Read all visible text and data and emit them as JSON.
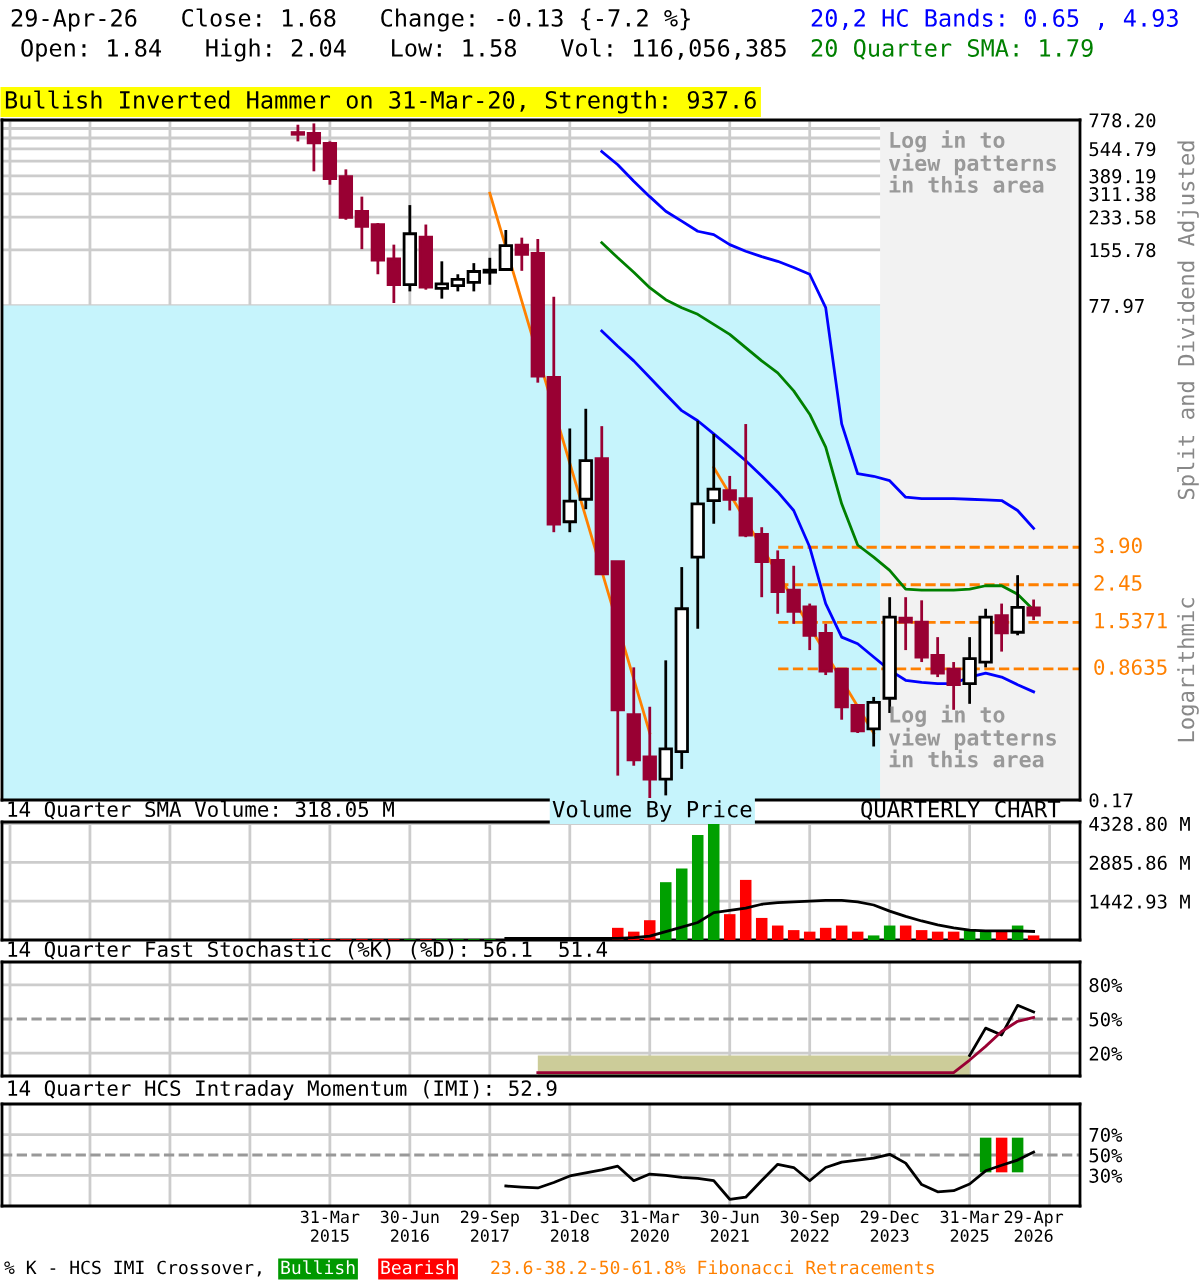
{
  "chart_data": [
    {
      "type": "candlestick",
      "title": "29-Apr-26   Close: 1.68   Change: -0.13 {-7.2 %}",
      "subtitle": "Open: 1.84   High: 2.04   Low: 1.58   Vol: 116,056,385",
      "ylabel": "Split and Dividend Adjusted",
      "annotations": [
        "Bullish Inverted Hammer on 31-Mar-20, Strength: 937.6",
        "Log in to\nview patterns\nin this area",
        "Log in to\nview patterns\nin this area",
        "Logarithmic"
      ],
      "categories": [
        null,
        null,
        "31-Mar\n2015",
        null,
        null,
        null,
        null,
        "30-Jun\n2016",
        null,
        null,
        null,
        null,
        "29-Sep\n2017",
        null,
        null,
        null,
        null,
        "31-Dec\n2018",
        null,
        null,
        null,
        null,
        "31-Mar\n2020",
        null,
        null,
        null,
        null,
        "30-Jun\n2021",
        null,
        null,
        null,
        null,
        "30-Sep\n2022",
        null,
        null,
        null,
        null,
        "29-Dec\n2023",
        null,
        null,
        null,
        null,
        "31-Mar\n2025",
        null,
        null,
        null,
        "29-Apr\n2026"
      ],
      "ohlc": [
        [
          666,
          734,
          597,
          652
        ],
        [
          659,
          746,
          412,
          587
        ],
        [
          582,
          597,
          349,
          376
        ],
        [
          386,
          422,
          226,
          233
        ],
        [
          251,
          301,
          157,
          208
        ],
        [
          213,
          217,
          115,
          137
        ],
        [
          139,
          166,
          80.5,
          101
        ],
        [
          101,
          271,
          93,
          190
        ],
        [
          182,
          213,
          95,
          98
        ],
        [
          96.5,
          135,
          85,
          102
        ],
        [
          100,
          115,
          93,
          108
        ],
        [
          104,
          132,
          93,
          119
        ],
        [
          118,
          141,
          101,
          121
        ],
        [
          122,
          199,
          120,
          164
        ],
        [
          165,
          181,
          120,
          147
        ],
        [
          149,
          178,
          30,
          32.5
        ],
        [
          32,
          87,
          4.7,
          5.2
        ],
        [
          5.35,
          17,
          4.7,
          6.9
        ],
        [
          7.07,
          21.7,
          6.25,
          11.4
        ],
        [
          11.7,
          17.5,
          2.8,
          2.8
        ],
        [
          3.26,
          3.26,
          0.23,
          0.52
        ],
        [
          0.49,
          0.88,
          0.26,
          0.28
        ],
        [
          0.29,
          0.54,
          0.17,
          0.22
        ],
        [
          0.22,
          0.96,
          0.18,
          0.32
        ],
        [
          0.31,
          3.05,
          0.25,
          1.82
        ],
        [
          3.45,
          18.7,
          1.42,
          6.68
        ],
        [
          6.96,
          15.9,
          5.22,
          8.01
        ],
        [
          7.87,
          9.44,
          6.15,
          7.07
        ],
        [
          7.13,
          17.96,
          4.42,
          4.53
        ],
        [
          4.57,
          5.0,
          2.1,
          3.26
        ],
        [
          3.31,
          3.75,
          1.71,
          2.25
        ],
        [
          2.29,
          3.1,
          1.51,
          1.76
        ],
        [
          1.86,
          1.94,
          1.09,
          1.31
        ],
        [
          1.34,
          1.51,
          0.8,
          0.84
        ],
        [
          0.86,
          0.86,
          0.46,
          0.54
        ],
        [
          0.55,
          0.55,
          0.39,
          0.4
        ],
        [
          0.41,
          0.61,
          0.33,
          0.57
        ],
        [
          0.6,
          2.1,
          0.5,
          1.64
        ],
        [
          1.62,
          2.1,
          1.09,
          1.54
        ],
        [
          1.54,
          2.02,
          0.94,
          1.0
        ],
        [
          1.02,
          1.28,
          0.78,
          0.82
        ],
        [
          0.86,
          0.94,
          0.52,
          0.71
        ],
        [
          0.72,
          1.28,
          0.56,
          0.98
        ],
        [
          0.94,
          1.82,
          0.88,
          1.64
        ],
        [
          1.67,
          1.94,
          1.07,
          1.35
        ],
        [
          1.36,
          2.76,
          1.31,
          1.85
        ],
        [
          1.84,
          2.04,
          1.58,
          1.68
        ]
      ],
      "series": [
        {
          "name": "20,2 HC Bands: 0.65 , 4.93",
          "type": "line",
          "color": "#0000ff",
          "values": [
            null,
            null,
            null,
            null,
            null,
            null,
            null,
            null,
            null,
            null,
            null,
            null,
            null,
            null,
            null,
            null,
            null,
            null,
            null,
            527,
            447,
            364,
            301,
            251,
            222,
            196,
            188,
            166,
            153,
            143,
            135,
            125,
            115,
            76,
            18,
            9.7,
            9.4,
            8.9,
            7.25,
            7.13,
            7.13,
            7.13,
            7.07,
            7.02,
            6.96,
            6.15,
            4.93
          ]
        },
        {
          "type": "line",
          "color": "#0000ff",
          "values": [
            null,
            null,
            null,
            null,
            null,
            null,
            null,
            null,
            null,
            null,
            null,
            null,
            null,
            null,
            null,
            null,
            null,
            null,
            null,
            57,
            47.1,
            39.3,
            32,
            26,
            21.2,
            18.7,
            15.9,
            13.5,
            11.4,
            9.44,
            7.74,
            6.15,
            3.91,
            1.94,
            1.28,
            1.18,
            1.0,
            0.85,
            0.75,
            0.73,
            0.72,
            0.72,
            0.78,
            0.82,
            0.78,
            0.71,
            0.65
          ]
        },
        {
          "name": "20 Quarter SMA: 1.79",
          "type": "line",
          "color": "#008000",
          "values": [
            null,
            null,
            null,
            null,
            null,
            null,
            null,
            null,
            null,
            null,
            null,
            null,
            null,
            null,
            null,
            null,
            null,
            null,
            null,
            170,
            141,
            118,
            97.3,
            83.9,
            76,
            70,
            61.8,
            54.6,
            46.3,
            39.3,
            33.9,
            27.1,
            20.3,
            13.5,
            6.68,
            4.01,
            3.45,
            2.93,
            2.32,
            2.29,
            2.29,
            2.29,
            2.32,
            2.42,
            2.42,
            2.18,
            1.79
          ]
        },
        {
          "type": "line",
          "color": "#ff8000",
          "values": [
            null,
            null,
            null,
            null,
            null,
            null,
            null,
            null,
            null,
            null,
            null,
            null,
            314,
            null,
            null,
            null,
            null,
            null,
            null,
            null,
            null,
            null,
            0.39,
            null,
            null,
            null,
            null,
            null,
            null,
            null,
            null,
            null,
            null,
            null,
            null,
            null,
            null,
            null,
            null,
            null,
            null,
            null,
            null,
            null,
            null,
            null,
            null
          ]
        },
        {
          "type": "line",
          "color": "#ff8000",
          "values": [
            null,
            null,
            null,
            null,
            null,
            null,
            null,
            null,
            null,
            null,
            null,
            null,
            null,
            null,
            null,
            null,
            null,
            null,
            null,
            null,
            null,
            null,
            null,
            null,
            null,
            null,
            10.5,
            null,
            null,
            null,
            null,
            null,
            null,
            null,
            null,
            null,
            0.39,
            null,
            null,
            null,
            null,
            null,
            null,
            null,
            null,
            null,
            null
          ]
        }
      ],
      "log": true,
      "ylim": [
        0.17,
        778.2
      ],
      "yticks": [
        {
          "value": 0.17,
          "label": "0.17"
        },
        {
          "value": 77.97,
          "label": "77.97"
        },
        {
          "value": 155.78,
          "label": "155.78"
        },
        {
          "value": 233.58,
          "label": "233.58"
        },
        {
          "value": 311.38,
          "label": "311.38"
        },
        {
          "value": 389.19,
          "label": "389.19"
        },
        {
          "value": 466.99,
          "label": null
        },
        {
          "value": 544.79,
          "label": "544.79"
        },
        {
          "value": 622.59,
          "label": null
        },
        {
          "value": 700.4,
          "label": null
        },
        {
          "value": 778.2,
          "label": "778.20"
        }
      ],
      "ref_lines": [
        {
          "axis": "y",
          "value": 3.9,
          "label": "3.90",
          "color": "#ff8000",
          "line_style": "dashed"
        },
        {
          "axis": "y",
          "value": 2.45,
          "label": "2.45",
          "color": "#ff8000",
          "line_style": "dashed"
        },
        {
          "axis": "y",
          "value": 1.5371,
          "label": "1.5371",
          "color": "#ff8000",
          "line_style": "dashed"
        },
        {
          "axis": "y",
          "value": 0.8635,
          "label": "0.8635",
          "color": "#ff8000",
          "line_style": "dashed"
        }
      ],
      "bands": [
        {
          "axis": "y",
          "from": 0.17,
          "to": 77.97,
          "color": "#c6f4fc"
        },
        {
          "axis": "x",
          "from": "29-Dec\n2023",
          "to": "29-Apr\n2026",
          "color": "#f2f2f2"
        }
      ],
      "grid": true,
      "tick_labels": "y",
      "legend": "top right"
    },
    {
      "type": "bar",
      "title": "14 Quarter SMA Volume: 318.05 M",
      "annotations": [
        "Volume By Price",
        "QUARTERLY CHART"
      ],
      "categories": [
        null,
        null,
        "31-Mar\n2015",
        null,
        null,
        null,
        null,
        "30-Jun\n2016",
        null,
        null,
        null,
        null,
        "29-Sep\n2017",
        null,
        null,
        null,
        null,
        "31-Dec\n2018",
        null,
        null,
        null,
        null,
        "31-Mar\n2020",
        null,
        null,
        null,
        null,
        "30-Jun\n2021",
        null,
        null,
        null,
        null,
        "30-Sep\n2022",
        null,
        null,
        null,
        null,
        "29-Dec\n2023",
        null,
        null,
        null,
        null,
        "31-Mar\n2025",
        null,
        null,
        null,
        "29-Apr\n2026"
      ],
      "series": [
        {
          "type": "bar",
          "colors": [
            "#ff0000",
            "#ff0000",
            "#ff0000",
            "#ff0000",
            "#ff0000",
            "#ff0000",
            "#ff0000",
            "#00a000",
            "#ff0000",
            "#00a000",
            "#00a000",
            "#00a000",
            "#00a000",
            "#00a000",
            "#ff0000",
            "#ff0000",
            "#ff0000",
            "#00a000",
            "#00a000",
            "#ff0000",
            "#ff0000",
            "#ff0000",
            "#ff0000",
            "#00a000",
            "#00a000",
            "#00a000",
            "#00a000",
            "#ff0000",
            "#ff0000",
            "#ff0000",
            "#ff0000",
            "#ff0000",
            "#ff0000",
            "#ff0000",
            "#ff0000",
            "#ff0000",
            "#00a000",
            "#00a000",
            "#ff0000",
            "#ff0000",
            "#ff0000",
            "#ff0000",
            "#00a000",
            "#00a000",
            "#ff0000",
            "#00a000",
            "#ff0000"
          ],
          "values": [
            30,
            30,
            30,
            30,
            30,
            30,
            30,
            30,
            30,
            30,
            30,
            30,
            30,
            null,
            null,
            null,
            null,
            null,
            null,
            null,
            453,
            311,
            736,
            2151,
            2660,
            3905,
            4380,
            962,
            2236,
            821,
            538,
            368,
            311,
            453,
            538,
            311,
            170,
            538,
            538,
            368,
            311,
            311,
            368,
            311,
            311,
            538,
            170
          ]
        },
        {
          "type": "line",
          "color": "#000000",
          "values": [
            null,
            null,
            null,
            null,
            null,
            null,
            null,
            null,
            null,
            null,
            null,
            null,
            null,
            57,
            57,
            57,
            57,
            57,
            57,
            57,
            57,
            85,
            142,
            311,
            481,
            651,
            1019,
            1104,
            1189,
            1330,
            1387,
            1415,
            1443,
            1472,
            1472,
            1415,
            1302,
            1075,
            877,
            708,
            566,
            453,
            368,
            340,
            340,
            340,
            318.05
          ]
        }
      ],
      "ylim": [
        0,
        4390
      ],
      "yticks": [
        {
          "value": 1442.93,
          "label": "1442.93 M"
        },
        {
          "value": 2885.86,
          "label": "2885.86 M"
        },
        {
          "value": 4328.8,
          "label": "4328.80 M"
        }
      ],
      "grid": true,
      "tick_labels": "y"
    },
    {
      "type": "line",
      "title": "14 Quarter Fast Stochastic (%K) (%D): 56.1  51.4",
      "categories": [
        null,
        null,
        "31-Mar\n2015",
        null,
        null,
        null,
        null,
        "30-Jun\n2016",
        null,
        null,
        null,
        null,
        "29-Sep\n2017",
        null,
        null,
        null,
        null,
        "31-Dec\n2018",
        null,
        null,
        null,
        null,
        "31-Mar\n2020",
        null,
        null,
        null,
        null,
        "30-Jun\n2021",
        null,
        null,
        null,
        null,
        "30-Sep\n2022",
        null,
        null,
        null,
        null,
        "29-Dec\n2023",
        null,
        null,
        null,
        null,
        "31-Mar\n2025",
        null,
        null,
        null,
        "29-Apr\n2026"
      ],
      "series": [
        {
          "type": "area",
          "color": "#cccc99",
          "values": [
            null,
            null,
            null,
            null,
            null,
            null,
            null,
            null,
            null,
            null,
            null,
            null,
            null,
            null,
            null,
            18,
            18,
            18,
            18,
            18,
            18,
            18,
            18,
            18,
            18,
            18,
            18,
            18,
            18,
            18,
            18,
            18,
            18,
            18,
            18,
            18,
            18,
            18,
            18,
            18,
            18,
            18,
            18,
            null,
            null,
            null,
            null
          ]
        },
        {
          "type": "line",
          "color": "#000000",
          "values": [
            null,
            null,
            null,
            null,
            null,
            null,
            null,
            null,
            null,
            null,
            null,
            null,
            null,
            null,
            null,
            null,
            null,
            null,
            null,
            null,
            null,
            null,
            null,
            null,
            null,
            null,
            null,
            null,
            null,
            null,
            null,
            null,
            null,
            null,
            null,
            null,
            null,
            null,
            null,
            null,
            null,
            null,
            18,
            42,
            36,
            62,
            56.1
          ]
        },
        {
          "type": "line",
          "color": "#990033",
          "values": [
            null,
            null,
            null,
            null,
            null,
            null,
            null,
            null,
            null,
            null,
            null,
            null,
            null,
            null,
            null,
            3,
            3,
            3,
            3,
            3,
            3,
            3,
            3,
            3,
            3,
            3,
            3,
            3,
            3,
            3,
            3,
            3,
            3,
            3,
            3,
            3,
            3,
            3,
            3,
            3,
            3,
            3,
            14,
            26,
            39,
            48,
            51.4
          ]
        }
      ],
      "ylim": [
        0,
        100
      ],
      "yticks": [
        {
          "value": 20,
          "label": "20%"
        },
        {
          "value": 50,
          "label": "50%"
        },
        {
          "value": 80,
          "label": "80%"
        }
      ],
      "ref_lines": [
        {
          "axis": "y",
          "value": 50,
          "color": "#999999",
          "line_style": "dashed"
        }
      ],
      "grid": true,
      "tick_labels": "y"
    },
    {
      "type": "line",
      "title": "14 Quarter HCS Intraday Momentum (IMI): 52.9",
      "annotations": [
        "% K - HCS IMI Crossover,",
        "23.6-38.2-50-61.8% Fibonacci Retracements"
      ],
      "categories": [
        null,
        null,
        "31-Mar\n2015",
        null,
        null,
        null,
        null,
        "30-Jun\n2016",
        null,
        null,
        null,
        null,
        "29-Sep\n2017",
        null,
        null,
        null,
        null,
        "31-Dec\n2018",
        null,
        null,
        null,
        null,
        "31-Mar\n2020",
        null,
        null,
        null,
        null,
        "30-Jun\n2021",
        null,
        null,
        null,
        null,
        "30-Sep\n2022",
        null,
        null,
        null,
        null,
        "29-Dec\n2023",
        null,
        null,
        null,
        null,
        "31-Mar\n2025",
        null,
        null,
        null,
        "29-Apr\n2026"
      ],
      "series": [
        {
          "type": "line",
          "color": "#000000",
          "values": [
            null,
            null,
            null,
            null,
            null,
            null,
            null,
            null,
            null,
            null,
            null,
            null,
            null,
            19.6,
            18.5,
            17.7,
            23,
            29.5,
            32.5,
            35.5,
            39,
            24.8,
            31.3,
            30,
            28,
            27,
            24.8,
            6.6,
            8.6,
            25,
            40.9,
            37.7,
            24.8,
            37.7,
            43,
            45,
            47,
            50.7,
            42,
            21,
            13.9,
            15,
            21.6,
            34.5,
            40,
            45,
            52.9
          ]
        },
        {
          "name": "Bullish",
          "type": "bar",
          "color": "#009900",
          "values": [
            null,
            null,
            null,
            null,
            null,
            null,
            null,
            null,
            null,
            null,
            null,
            null,
            null,
            null,
            null,
            null,
            null,
            null,
            null,
            null,
            null,
            null,
            null,
            null,
            null,
            null,
            null,
            null,
            null,
            null,
            null,
            null,
            null,
            null,
            null,
            null,
            null,
            null,
            null,
            null,
            null,
            null,
            null,
            34,
            null,
            34,
            null
          ],
          "base": [
            null,
            null,
            null,
            null,
            null,
            null,
            null,
            null,
            null,
            null,
            null,
            null,
            null,
            null,
            null,
            null,
            null,
            null,
            null,
            null,
            null,
            null,
            null,
            null,
            null,
            null,
            null,
            null,
            null,
            null,
            null,
            null,
            null,
            null,
            null,
            null,
            null,
            null,
            null,
            null,
            null,
            null,
            null,
            33,
            null,
            33,
            null
          ]
        },
        {
          "name": "Bearish",
          "type": "bar",
          "color": "#ff0000",
          "values": [
            null,
            null,
            null,
            null,
            null,
            null,
            null,
            null,
            null,
            null,
            null,
            null,
            null,
            null,
            null,
            null,
            null,
            null,
            null,
            null,
            null,
            null,
            null,
            null,
            null,
            null,
            null,
            null,
            null,
            null,
            null,
            null,
            null,
            null,
            null,
            null,
            null,
            null,
            null,
            null,
            null,
            null,
            null,
            null,
            34,
            null,
            null
          ],
          "base": [
            null,
            null,
            null,
            null,
            null,
            null,
            null,
            null,
            null,
            null,
            null,
            null,
            null,
            null,
            null,
            null,
            null,
            null,
            null,
            null,
            null,
            null,
            null,
            null,
            null,
            null,
            null,
            null,
            null,
            null,
            null,
            null,
            null,
            null,
            null,
            null,
            null,
            null,
            null,
            null,
            null,
            null,
            null,
            null,
            33,
            null,
            null
          ]
        }
      ],
      "ylim": [
        0,
        100
      ],
      "yticks": [
        {
          "value": 30,
          "label": "30%"
        },
        {
          "value": 50,
          "label": "50%"
        },
        {
          "value": 70,
          "label": "70%"
        }
      ],
      "ref_lines": [
        {
          "axis": "y",
          "value": 50,
          "color": "#999999",
          "line_style": "dashed"
        }
      ],
      "grid": true,
      "legend": "bottom"
    }
  ]
}
